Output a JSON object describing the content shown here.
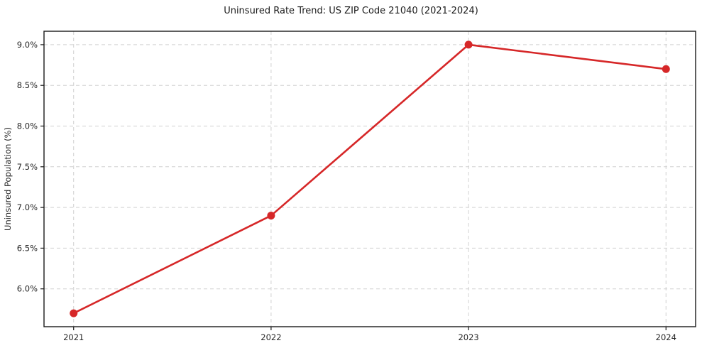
{
  "figure": {
    "title": "Uninsured Rate Trend: US ZIP Code 21040 (2021-2024)"
  },
  "chart_data": {
    "type": "line",
    "title": "Uninsured Rate Trend: US ZIP Code 21040 (2021-2024)",
    "x": [
      2021,
      2022,
      2023,
      2024
    ],
    "values": [
      5.7,
      6.9,
      9.0,
      8.7
    ],
    "xlabel": "",
    "ylabel": "Uninsured Population (%)",
    "xtick_labels": [
      "2021",
      "2022",
      "2023",
      "2024"
    ],
    "ytick_labels": [
      "6.0%",
      "6.5%",
      "7.0%",
      "7.5%",
      "8.0%",
      "8.5%",
      "9.0%"
    ],
    "yticks": [
      6.0,
      6.5,
      7.0,
      7.5,
      8.0,
      8.5,
      9.0
    ],
    "xlim": [
      2020.85,
      2024.15
    ],
    "ylim": [
      5.535,
      9.165
    ],
    "grid": true,
    "legend_position": "none",
    "line_color": "#d62728",
    "marker": "circle",
    "grid_color": "#d0d0d0",
    "spine_color": "#1a1a1a"
  }
}
